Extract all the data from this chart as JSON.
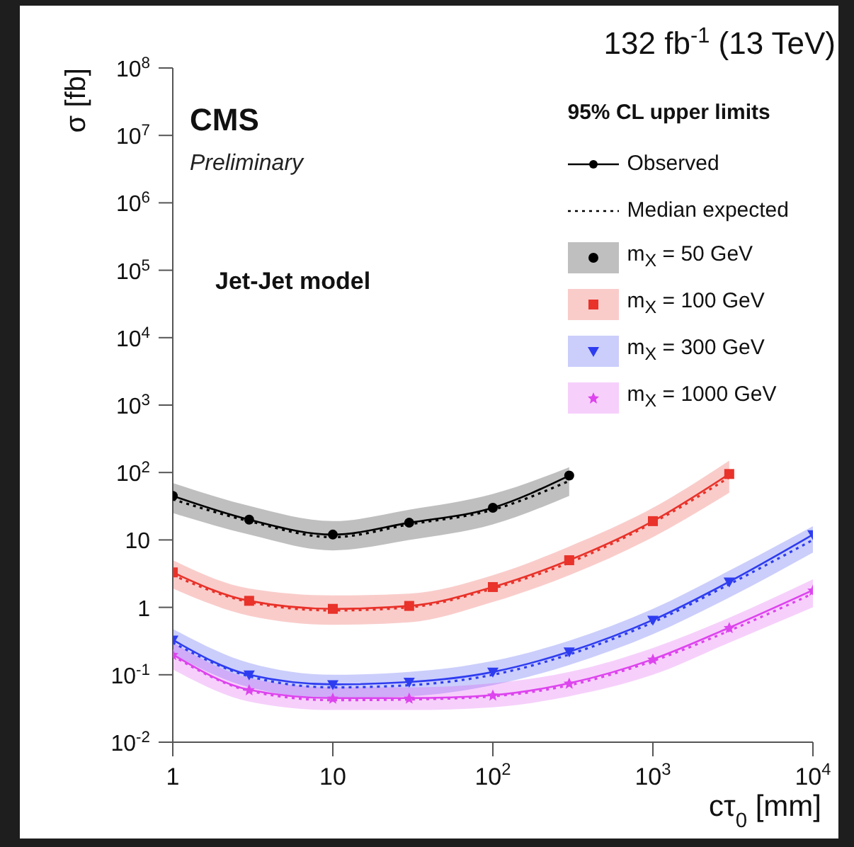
{
  "chart_data": {
    "type": "line",
    "title": "132 fb$^{-1}$ (13 TeV)",
    "xlabel": "cτ$_{0}$ [mm]",
    "ylabel": "σ [fb]",
    "legend_title": "95% CL upper limits",
    "annotations": [
      "CMS",
      "Preliminary",
      "Jet-Jet model",
      "Observed",
      "Median expected"
    ],
    "log": "xy",
    "xlim": [
      1,
      10000
    ],
    "ylim": [
      0.01,
      100000000
    ],
    "xticks": [
      1,
      10,
      {
        "value": 100,
        "label": "10$^{2}$"
      },
      {
        "value": 1000,
        "label": "10$^{3}$"
      },
      {
        "value": 10000,
        "label": "10$^{4}$"
      }
    ],
    "yticks": [
      {
        "value": 0.01,
        "label": "10$^{-2}$"
      },
      {
        "value": 0.1,
        "label": "10$^{-1}$"
      },
      1,
      10,
      {
        "value": 100,
        "label": "10$^{2}$"
      },
      {
        "value": 1000,
        "label": "10$^{3}$"
      },
      {
        "value": 10000,
        "label": "10$^{4}$"
      },
      {
        "value": 100000,
        "label": "10$^{5}$"
      },
      {
        "value": 1000000,
        "label": "10$^{6}$"
      },
      {
        "value": 10000000,
        "label": "10$^{7}$"
      },
      {
        "value": 100000000,
        "label": "10$^{8}$"
      }
    ],
    "grid": false,
    "legend": "top right",
    "series": [
      {
        "name": "m$_{X}$ = 50 GeV",
        "color": "#000000",
        "marker": "circle",
        "line_style": "solid",
        "x": [
          1,
          3,
          10,
          30,
          100,
          300
        ],
        "values": [
          45,
          20,
          12,
          18,
          30,
          90
        ]
      },
      {
        "color": "#000000",
        "marker": "none",
        "line_style": "dotted",
        "x": [
          1,
          3,
          10,
          30,
          100,
          300
        ],
        "values": [
          40,
          19,
          11,
          17,
          28,
          75
        ],
        "lower": [
          25,
          12,
          7,
          10,
          17,
          45
        ],
        "upper": [
          70,
          32,
          19,
          28,
          48,
          120
        ]
      },
      {
        "name": "m$_{X}$ = 100 GeV",
        "color": "#e8322a",
        "marker": "square",
        "line_style": "solid",
        "x": [
          1,
          3,
          10,
          30,
          100,
          300,
          1000,
          3000
        ],
        "values": [
          3.3,
          1.25,
          0.95,
          1.05,
          2,
          5,
          19,
          95
        ]
      },
      {
        "color": "#e8322a",
        "marker": "none",
        "line_style": "dotted",
        "x": [
          1,
          3,
          10,
          30,
          100,
          300,
          1000,
          3000
        ],
        "values": [
          3,
          1.2,
          0.9,
          1,
          1.9,
          4.6,
          18,
          85
        ],
        "lower": [
          1.9,
          0.75,
          0.55,
          0.6,
          1.2,
          3,
          11,
          50
        ],
        "upper": [
          5,
          1.9,
          1.5,
          1.6,
          3,
          8,
          30,
          150
        ]
      },
      {
        "name": "m$_{X}$ = 300 GeV",
        "color": "#2e3cf0",
        "marker": "triangle",
        "line_style": "solid",
        "x": [
          1,
          3,
          10,
          30,
          100,
          300,
          1000,
          3000,
          10000
        ],
        "values": [
          0.33,
          0.1,
          0.072,
          0.078,
          0.11,
          0.22,
          0.65,
          2.4,
          12
        ]
      },
      {
        "color": "#2e3cf0",
        "marker": "none",
        "line_style": "dotted",
        "x": [
          1,
          3,
          10,
          30,
          100,
          300,
          1000,
          3000,
          10000
        ],
        "values": [
          0.3,
          0.095,
          0.065,
          0.07,
          0.1,
          0.2,
          0.6,
          2.2,
          10
        ],
        "lower": [
          0.2,
          0.065,
          0.045,
          0.048,
          0.07,
          0.14,
          0.4,
          1.4,
          6.5
        ],
        "upper": [
          0.48,
          0.15,
          0.1,
          0.11,
          0.16,
          0.32,
          0.95,
          3.5,
          16
        ]
      },
      {
        "name": "m$_{X}$ = 1000 GeV",
        "color": "#dd44ee",
        "marker": "star",
        "line_style": "solid",
        "x": [
          1,
          3,
          10,
          30,
          100,
          300,
          1000,
          3000,
          10000
        ],
        "values": [
          0.2,
          0.06,
          0.045,
          0.045,
          0.05,
          0.075,
          0.17,
          0.5,
          1.8
        ]
      },
      {
        "color": "#dd44ee",
        "marker": "none",
        "line_style": "dotted",
        "x": [
          1,
          3,
          10,
          30,
          100,
          300,
          1000,
          3000,
          10000
        ],
        "values": [
          0.19,
          0.058,
          0.042,
          0.043,
          0.048,
          0.07,
          0.16,
          0.45,
          1.6
        ],
        "lower": [
          0.12,
          0.04,
          0.03,
          0.03,
          0.033,
          0.048,
          0.1,
          0.3,
          1
        ],
        "upper": [
          0.3,
          0.09,
          0.065,
          0.065,
          0.075,
          0.11,
          0.25,
          0.7,
          2.6
        ]
      }
    ]
  }
}
